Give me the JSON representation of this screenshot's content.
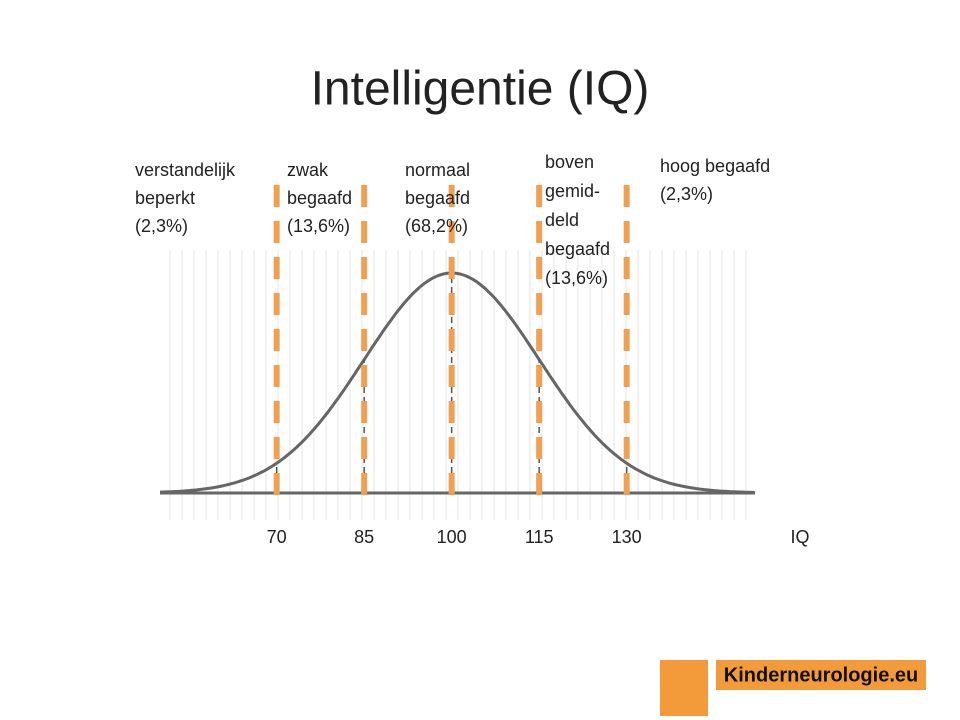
{
  "chart_data": {
    "type": "bell",
    "title": "Intelligentie (IQ)",
    "xlabel": "IQ",
    "xlim": [
      50,
      152
    ],
    "xticks": [
      70,
      85,
      100,
      115,
      130
    ],
    "line_color": "#666666",
    "divider_color": "#f0a050",
    "bands": [
      [
        "verstandelijk",
        "beperkt",
        "(2,3%)"
      ],
      [
        "zwak",
        "begaafd",
        "(13,6%)"
      ],
      [
        "normaal",
        "begaafd",
        "(68,2%)"
      ],
      [
        "boven",
        "gemid-",
        "deld",
        "begaafd",
        "(13,6%)"
      ],
      [
        "hoog begaafd",
        "(2,3%)"
      ]
    ]
  },
  "logo": {
    "text": "Kinderneurologie.eu"
  }
}
